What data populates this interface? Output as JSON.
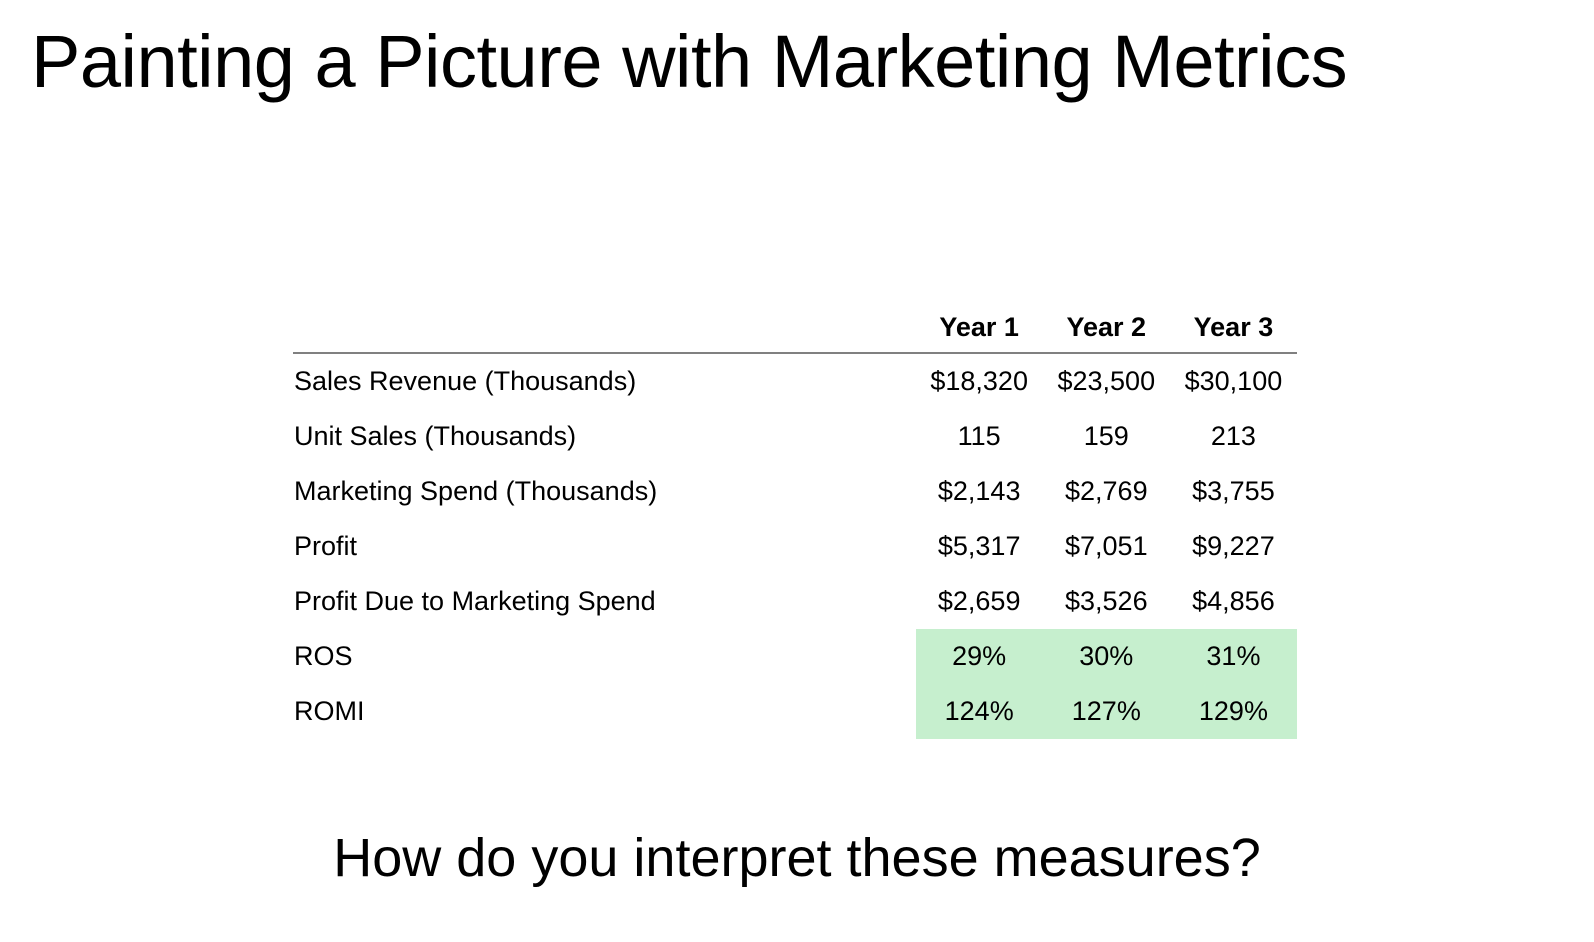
{
  "title": "Painting a Picture with Marketing Metrics",
  "table": {
    "headers": [
      "",
      "Year 1",
      "Year 2",
      "Year 3"
    ],
    "highlight_color": "#c6efce",
    "rows": [
      {
        "label": "Sales Revenue (Thousands)",
        "values": [
          "$18,320",
          "$23,500",
          "$30,100"
        ],
        "highlighted": false
      },
      {
        "label": "Unit Sales (Thousands)",
        "values": [
          "115",
          "159",
          "213"
        ],
        "highlighted": false
      },
      {
        "label": "Marketing  Spend (Thousands)",
        "values": [
          "$2,143",
          "$2,769",
          "$3,755"
        ],
        "highlighted": false
      },
      {
        "label": "Profit",
        "values": [
          "$5,317",
          "$7,051",
          "$9,227"
        ],
        "highlighted": false
      },
      {
        "label": "Profit Due to Marketing Spend",
        "values": [
          "$2,659",
          "$3,526",
          "$4,856"
        ],
        "highlighted": false
      },
      {
        "label": "ROS",
        "values": [
          "29%",
          "30%",
          "31%"
        ],
        "highlighted": true
      },
      {
        "label": "ROMI",
        "values": [
          "124%",
          "127%",
          "129%"
        ],
        "highlighted": true
      }
    ]
  },
  "question": "How do you interpret these measures?"
}
